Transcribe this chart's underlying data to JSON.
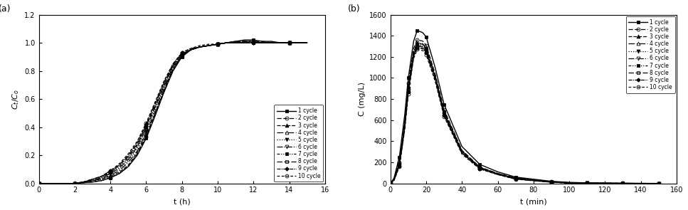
{
  "panel_a": {
    "xlabel": "t (h)",
    "ylabel": "C_t/C_o",
    "xlim": [
      0,
      16
    ],
    "ylim": [
      0.0,
      1.2
    ],
    "yticks": [
      0.0,
      0.2,
      0.4,
      0.6,
      0.8,
      1.0,
      1.2
    ],
    "xticks": [
      0,
      2,
      4,
      6,
      8,
      10,
      12,
      14,
      16
    ],
    "t_points": [
      0,
      0.5,
      1.0,
      1.5,
      2.0,
      2.5,
      3.0,
      3.5,
      4.0,
      4.5,
      5.0,
      5.5,
      6.0,
      6.5,
      7.0,
      7.5,
      8.0,
      8.5,
      9.0,
      9.5,
      10.0,
      10.5,
      11.0,
      11.5,
      12.0,
      12.5,
      13.0,
      13.5,
      14.0,
      14.5,
      15.0
    ],
    "cycle_data": {
      "1": [
        0,
        0,
        0,
        0,
        0,
        0.005,
        0.01,
        0.02,
        0.04,
        0.07,
        0.12,
        0.2,
        0.32,
        0.48,
        0.65,
        0.8,
        0.9,
        0.95,
        0.97,
        0.98,
        0.99,
        1.0,
        1.01,
        1.02,
        1.02,
        1.01,
        1.01,
        1.0,
        1.0,
        1.0,
        1.0
      ],
      "2": [
        0,
        0,
        0,
        0,
        0,
        0.005,
        0.01,
        0.02,
        0.04,
        0.07,
        0.12,
        0.21,
        0.33,
        0.49,
        0.65,
        0.8,
        0.91,
        0.95,
        0.97,
        0.98,
        0.99,
        1.0,
        1.01,
        1.01,
        1.01,
        1.01,
        1.0,
        1.0,
        1.0,
        1.0,
        1.0
      ],
      "3": [
        0,
        0,
        0,
        0,
        0,
        0.01,
        0.02,
        0.03,
        0.05,
        0.08,
        0.13,
        0.22,
        0.34,
        0.5,
        0.66,
        0.81,
        0.91,
        0.95,
        0.97,
        0.98,
        0.99,
        1.0,
        1.01,
        1.01,
        1.01,
        1.0,
        1.0,
        1.0,
        1.0,
        1.0,
        1.0
      ],
      "4": [
        0,
        0,
        0,
        0,
        0,
        0.01,
        0.02,
        0.03,
        0.06,
        0.09,
        0.15,
        0.23,
        0.36,
        0.51,
        0.67,
        0.82,
        0.91,
        0.95,
        0.97,
        0.98,
        0.99,
        1.0,
        1.0,
        1.01,
        1.01,
        1.0,
        1.0,
        1.0,
        1.0,
        1.0,
        1.0
      ],
      "5": [
        0,
        0,
        0,
        0,
        0,
        0.01,
        0.02,
        0.04,
        0.07,
        0.1,
        0.16,
        0.25,
        0.37,
        0.53,
        0.68,
        0.82,
        0.91,
        0.95,
        0.97,
        0.98,
        0.99,
        1.0,
        1.0,
        1.0,
        1.0,
        1.0,
        1.0,
        1.0,
        1.0,
        1.0,
        1.0
      ],
      "6": [
        0,
        0,
        0,
        0,
        0,
        0.01,
        0.02,
        0.04,
        0.07,
        0.11,
        0.17,
        0.26,
        0.39,
        0.54,
        0.69,
        0.83,
        0.92,
        0.95,
        0.97,
        0.98,
        0.99,
        1.0,
        1.0,
        1.0,
        1.0,
        1.0,
        1.0,
        1.0,
        1.0,
        1.0,
        1.0
      ],
      "7": [
        0,
        0,
        0,
        0,
        0,
        0.01,
        0.02,
        0.04,
        0.08,
        0.12,
        0.18,
        0.27,
        0.4,
        0.55,
        0.7,
        0.84,
        0.92,
        0.95,
        0.97,
        0.98,
        0.99,
        1.0,
        1.0,
        1.0,
        1.0,
        1.0,
        1.0,
        1.0,
        1.0,
        1.0,
        1.0
      ],
      "8": [
        0,
        0,
        0,
        0,
        0,
        0.01,
        0.03,
        0.05,
        0.08,
        0.13,
        0.19,
        0.28,
        0.41,
        0.56,
        0.71,
        0.84,
        0.92,
        0.95,
        0.97,
        0.98,
        0.99,
        1.0,
        1.0,
        1.0,
        1.0,
        1.0,
        1.0,
        1.0,
        1.0,
        1.0,
        1.0
      ],
      "9": [
        0,
        0,
        0,
        0,
        0,
        0.01,
        0.03,
        0.05,
        0.09,
        0.13,
        0.2,
        0.29,
        0.42,
        0.57,
        0.72,
        0.85,
        0.93,
        0.96,
        0.97,
        0.98,
        0.99,
        1.0,
        1.0,
        1.0,
        1.0,
        1.0,
        1.0,
        1.0,
        1.0,
        1.0,
        1.0
      ],
      "10": [
        0,
        0,
        0,
        0,
        0,
        0.01,
        0.03,
        0.05,
        0.09,
        0.14,
        0.21,
        0.3,
        0.43,
        0.58,
        0.73,
        0.85,
        0.93,
        0.96,
        0.98,
        0.99,
        0.99,
        1.0,
        1.0,
        1.0,
        1.0,
        1.0,
        1.0,
        1.0,
        1.0,
        1.0,
        1.0
      ]
    }
  },
  "panel_b": {
    "xlabel": "t (min)",
    "ylabel": "C (mg/L)",
    "xlim": [
      0,
      160
    ],
    "ylim": [
      0,
      1600
    ],
    "yticks": [
      0,
      200,
      400,
      600,
      800,
      1000,
      1200,
      1400,
      1600
    ],
    "xticks": [
      0,
      20,
      40,
      60,
      80,
      100,
      120,
      140,
      160
    ],
    "t_points": [
      0,
      2,
      5,
      8,
      10,
      13,
      15,
      18,
      20,
      25,
      30,
      40,
      50,
      60,
      70,
      80,
      90,
      100,
      110,
      120,
      130,
      140,
      150
    ],
    "cycle_data": {
      "1": [
        0,
        50,
        250,
        650,
        1000,
        1350,
        1450,
        1430,
        1390,
        1100,
        750,
        350,
        180,
        110,
        60,
        40,
        20,
        10,
        5,
        3,
        2,
        1,
        0
      ],
      "2": [
        0,
        40,
        200,
        580,
        950,
        1280,
        1360,
        1350,
        1310,
        1040,
        700,
        315,
        155,
        95,
        52,
        32,
        16,
        7,
        3,
        2,
        1,
        0,
        0
      ],
      "3": [
        0,
        38,
        190,
        560,
        910,
        1250,
        1330,
        1320,
        1280,
        1020,
        680,
        305,
        150,
        92,
        50,
        30,
        15,
        6,
        3,
        2,
        1,
        0,
        0
      ],
      "4": [
        0,
        38,
        190,
        565,
        915,
        1250,
        1335,
        1325,
        1285,
        1025,
        685,
        308,
        152,
        93,
        51,
        31,
        15,
        6,
        3,
        2,
        1,
        0,
        0
      ],
      "5": [
        0,
        35,
        180,
        545,
        900,
        1235,
        1320,
        1310,
        1270,
        1010,
        670,
        298,
        147,
        90,
        47,
        29,
        14,
        5,
        2,
        1,
        0,
        0,
        0
      ],
      "6": [
        0,
        33,
        175,
        535,
        885,
        1220,
        1305,
        1295,
        1255,
        1000,
        660,
        293,
        144,
        88,
        45,
        28,
        13,
        5,
        2,
        1,
        0,
        0,
        0
      ],
      "7": [
        0,
        30,
        168,
        525,
        870,
        1205,
        1290,
        1280,
        1240,
        990,
        650,
        288,
        141,
        86,
        43,
        27,
        12,
        4,
        2,
        1,
        0,
        0,
        0
      ],
      "8": [
        0,
        33,
        175,
        535,
        885,
        1218,
        1305,
        1295,
        1255,
        1000,
        658,
        291,
        143,
        87,
        44,
        27,
        13,
        4,
        2,
        1,
        0,
        0,
        0
      ],
      "9": [
        0,
        30,
        168,
        525,
        870,
        1205,
        1288,
        1278,
        1238,
        988,
        648,
        286,
        140,
        85,
        42,
        26,
        12,
        4,
        2,
        1,
        0,
        0,
        0
      ],
      "10": [
        0,
        25,
        158,
        505,
        850,
        1185,
        1270,
        1260,
        1220,
        970,
        635,
        278,
        136,
        83,
        40,
        25,
        11,
        4,
        2,
        1,
        0,
        0,
        0
      ]
    }
  },
  "legend_fontsize": 5.5,
  "axis_fontsize": 7,
  "label_fontsize": 8
}
